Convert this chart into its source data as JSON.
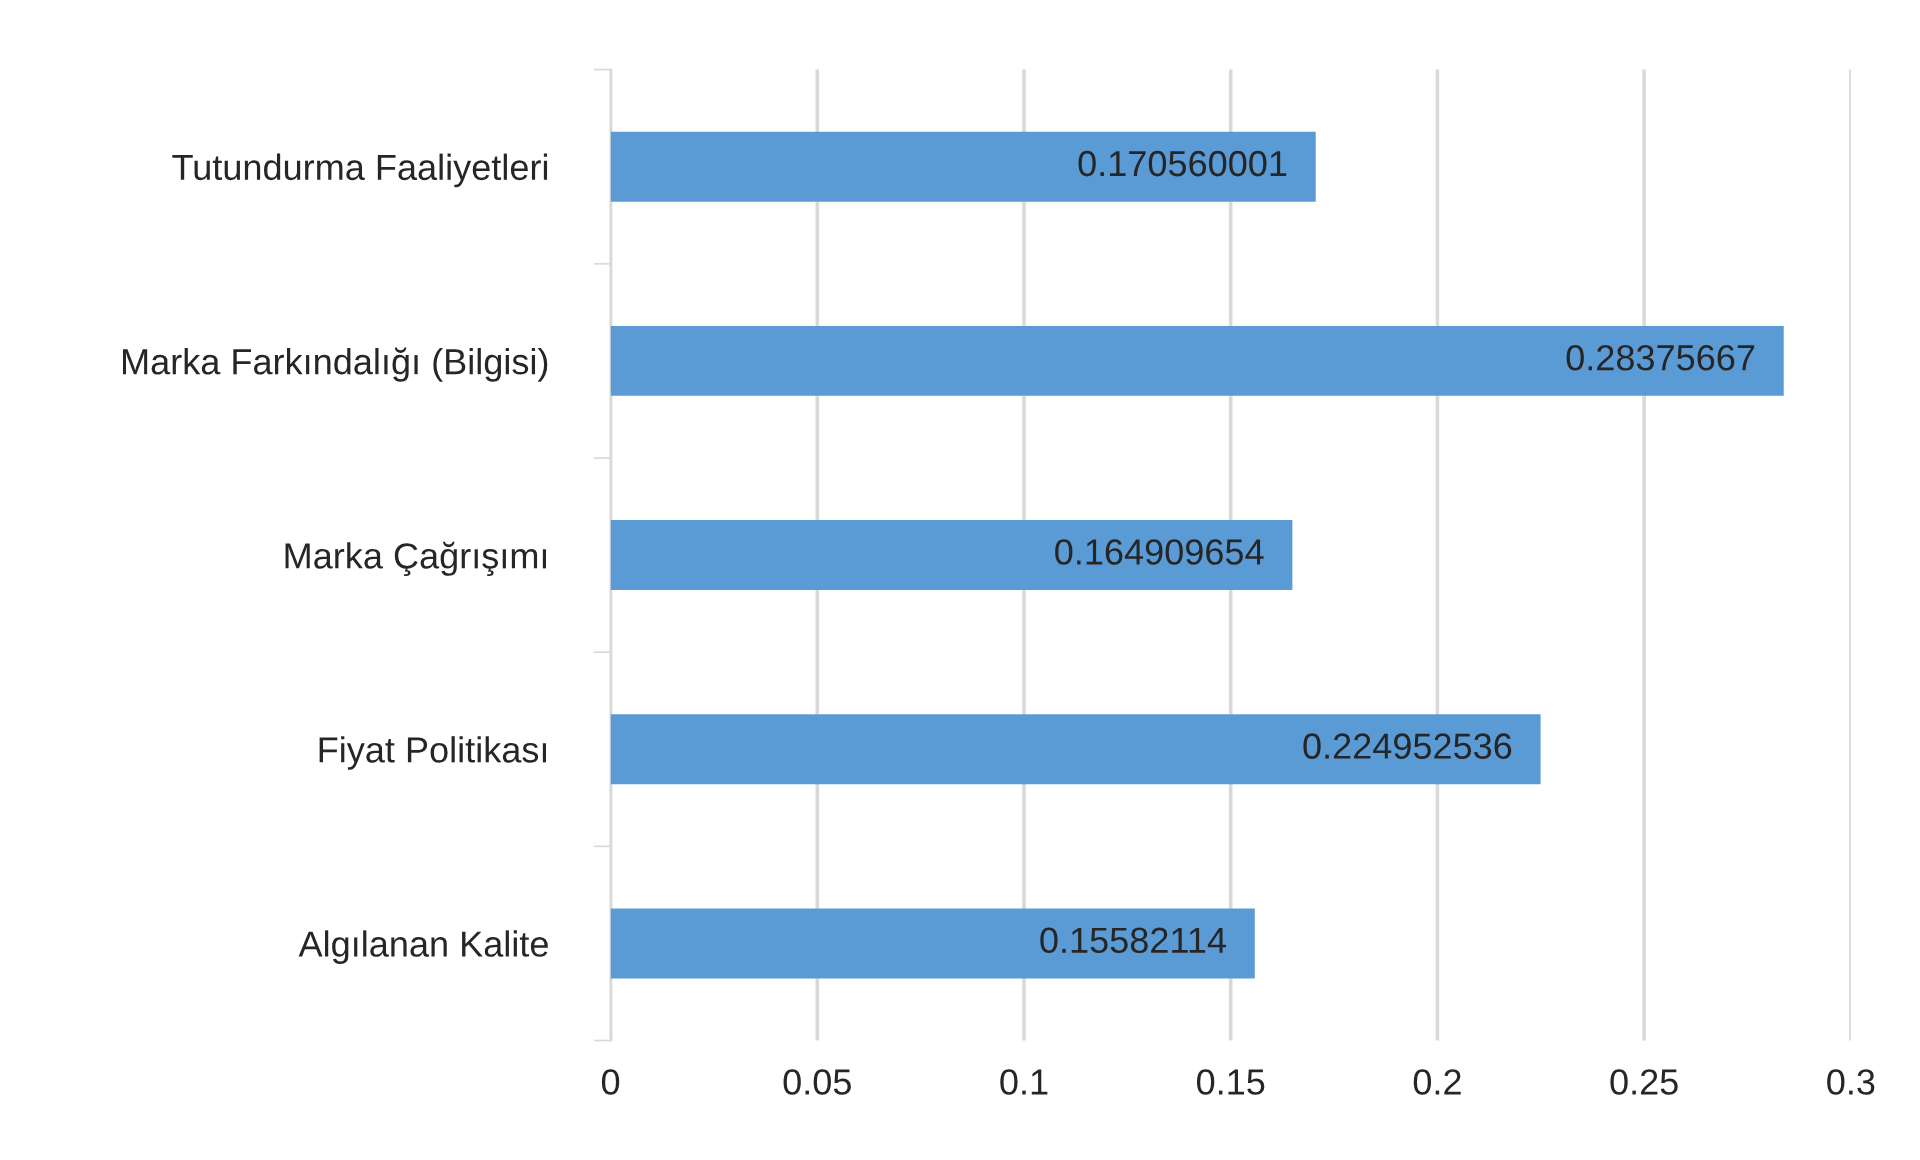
{
  "chart_data": {
    "type": "bar",
    "orientation": "horizontal",
    "categories": [
      "Tutundurma Faaliyetleri",
      "Marka Farkındalığı (Bilgisi)",
      "Marka Çağrışımı",
      "Fiyat Politikası",
      "Algılanan Kalite"
    ],
    "values": [
      0.170560001,
      0.28375667,
      0.164909654,
      0.224952536,
      0.15582114
    ],
    "color": "#5b9bd5",
    "xlim": [
      0,
      0.3
    ],
    "xticks": [
      0,
      0.05,
      0.1,
      0.15,
      0.2,
      0.25,
      0.3
    ],
    "grid": "x",
    "data_labels": true,
    "legend": false
  }
}
